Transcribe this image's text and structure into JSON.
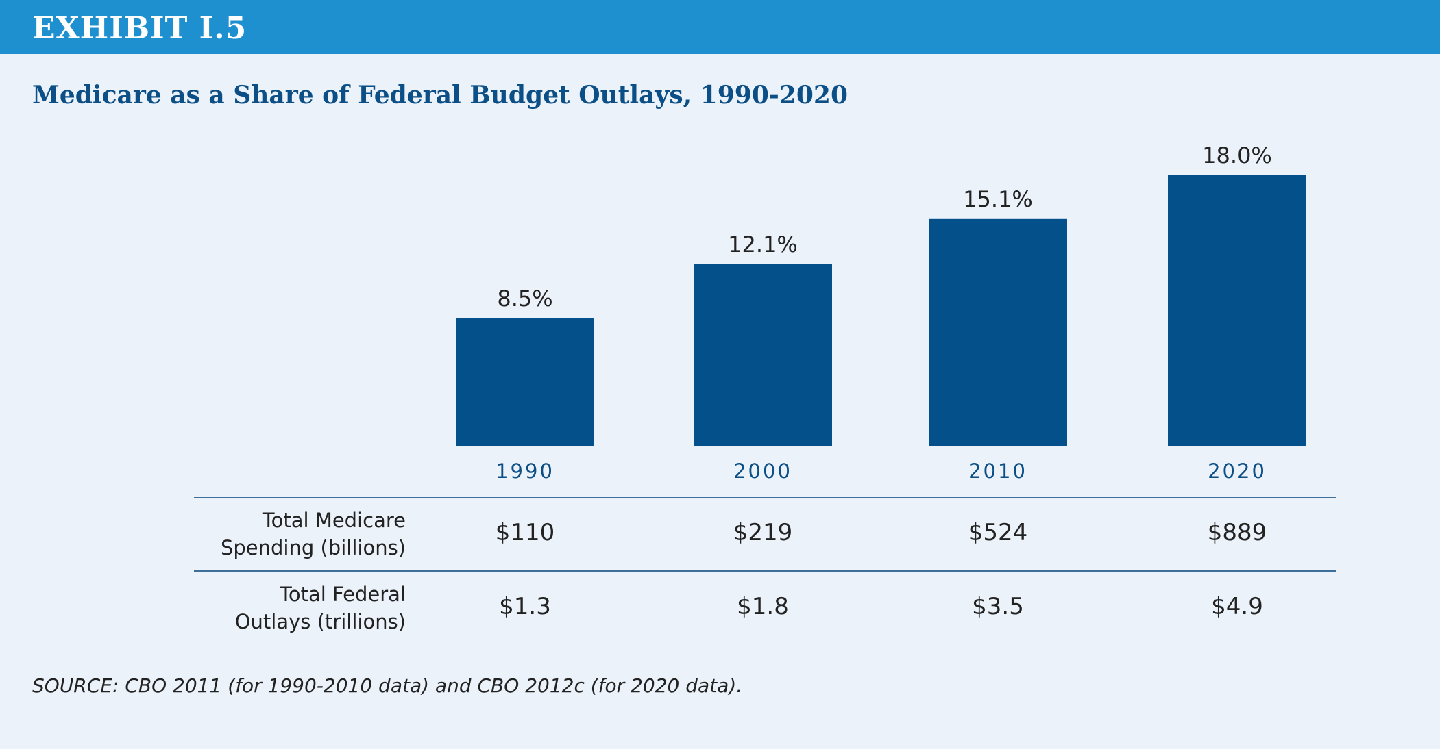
{
  "exhibit_label": "EXHIBIT I.5",
  "chart_data": {
    "type": "bar",
    "title": "Medicare as a Share of Federal Budget Outlays, 1990-2020",
    "categories": [
      "1990",
      "2000",
      "2010",
      "2020"
    ],
    "values": [
      8.5,
      12.1,
      15.1,
      18.0
    ],
    "data_labels": [
      "8.5%",
      "12.1%",
      "15.1%",
      "18.0%"
    ],
    "ylim": [
      0,
      20
    ],
    "bar_color": "#03508a",
    "grid": false,
    "legend": "none"
  },
  "table": {
    "rows": [
      {
        "label_line1": "Total Medicare",
        "label_line2": "Spending (billions)",
        "cells": [
          "$110",
          "$219",
          "$524",
          "$889"
        ]
      },
      {
        "label_line1": "Total Federal",
        "label_line2": "Outlays (trillions)",
        "cells": [
          "$1.3",
          "$1.8",
          "$3.5",
          "$4.9"
        ]
      }
    ]
  },
  "source": "SOURCE:  CBO 2011 (for 1990-2010 data) and CBO 2012c (for 2020 data)."
}
